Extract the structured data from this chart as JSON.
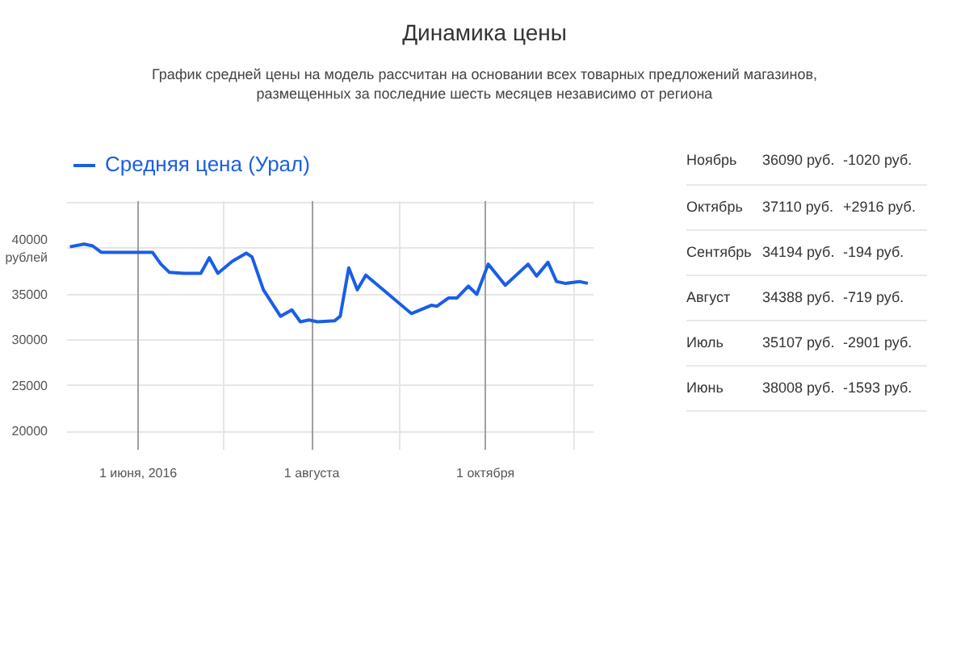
{
  "chart_data": [
    {
      "type": "line",
      "title": "Динамика цены",
      "subtitle": "График средней цены на модель рассчитан на основании всех товарных предложений магазинов, размещенных за последние шесть месяцев независимо от региона",
      "x": [
        "2016-05-08",
        "2016-05-13",
        "2016-05-16",
        "2016-05-19",
        "2016-05-25",
        "2016-06-06",
        "2016-06-09",
        "2016-06-12",
        "2016-06-17",
        "2016-06-23",
        "2016-06-26",
        "2016-06-29",
        "2016-07-04",
        "2016-07-09",
        "2016-07-11",
        "2016-07-15",
        "2016-07-21",
        "2016-07-25",
        "2016-07-28",
        "2016-07-31",
        "2016-08-03",
        "2016-08-09",
        "2016-08-11",
        "2016-08-14",
        "2016-08-17",
        "2016-08-20",
        "2016-09-05",
        "2016-09-12",
        "2016-09-14",
        "2016-09-18",
        "2016-09-21",
        "2016-09-25",
        "2016-09-28",
        "2016-10-02",
        "2016-10-08",
        "2016-10-16",
        "2016-10-19",
        "2016-10-23",
        "2016-10-26",
        "2016-10-29",
        "2016-11-03",
        "2016-11-06"
      ],
      "series": [
        {
          "name": "Средняя цена (Урал)",
          "color": "#1a5ee6",
          "values": [
            40200,
            40500,
            40300,
            39600,
            39600,
            39600,
            38300,
            37400,
            37300,
            37300,
            39000,
            37300,
            38600,
            39500,
            39100,
            35500,
            32600,
            33300,
            32000,
            32200,
            32000,
            32100,
            32600,
            37900,
            35500,
            37100,
            32900,
            33800,
            33700,
            34600,
            34600,
            35900,
            35000,
            38300,
            36000,
            38300,
            37000,
            38500,
            36400,
            36200,
            36400,
            36200
          ]
        }
      ],
      "xlim": [
        "2016-05-07",
        "2016-11-08"
      ],
      "ylim": [
        18000,
        45200
      ],
      "xticks": [
        {
          "value": "2016-06-01",
          "label": "1 июня, 2016"
        },
        {
          "value": "2016-07-01",
          "label": null
        },
        {
          "value": "2016-08-01",
          "label": "1 августа"
        },
        {
          "value": "2016-09-01",
          "label": null
        },
        {
          "value": "2016-10-01",
          "label": "1 октября"
        },
        {
          "value": "2016-11-01",
          "label": null
        }
      ],
      "yticks": [
        20000,
        25000,
        30000,
        35000,
        {
          "value": 40000,
          "label": "40000\nрублей"
        },
        {
          "value": 45000,
          "label": null
        }
      ],
      "grid": true,
      "legend": "top left"
    },
    {
      "type": "other",
      "annotations": [
        "Ноябрь",
        "36090 руб.",
        "-1020 руб.",
        "Октябрь",
        "37110 руб.",
        "+2916 руб.",
        "Сентябрь",
        "34194 руб.",
        "-194 руб.",
        "Август",
        "34388 руб.",
        "-719 руб.",
        "Июль",
        "35107 руб.",
        "-2901 руб.",
        "Июнь",
        "38008 руб.",
        "-1593 руб."
      ]
    }
  ]
}
